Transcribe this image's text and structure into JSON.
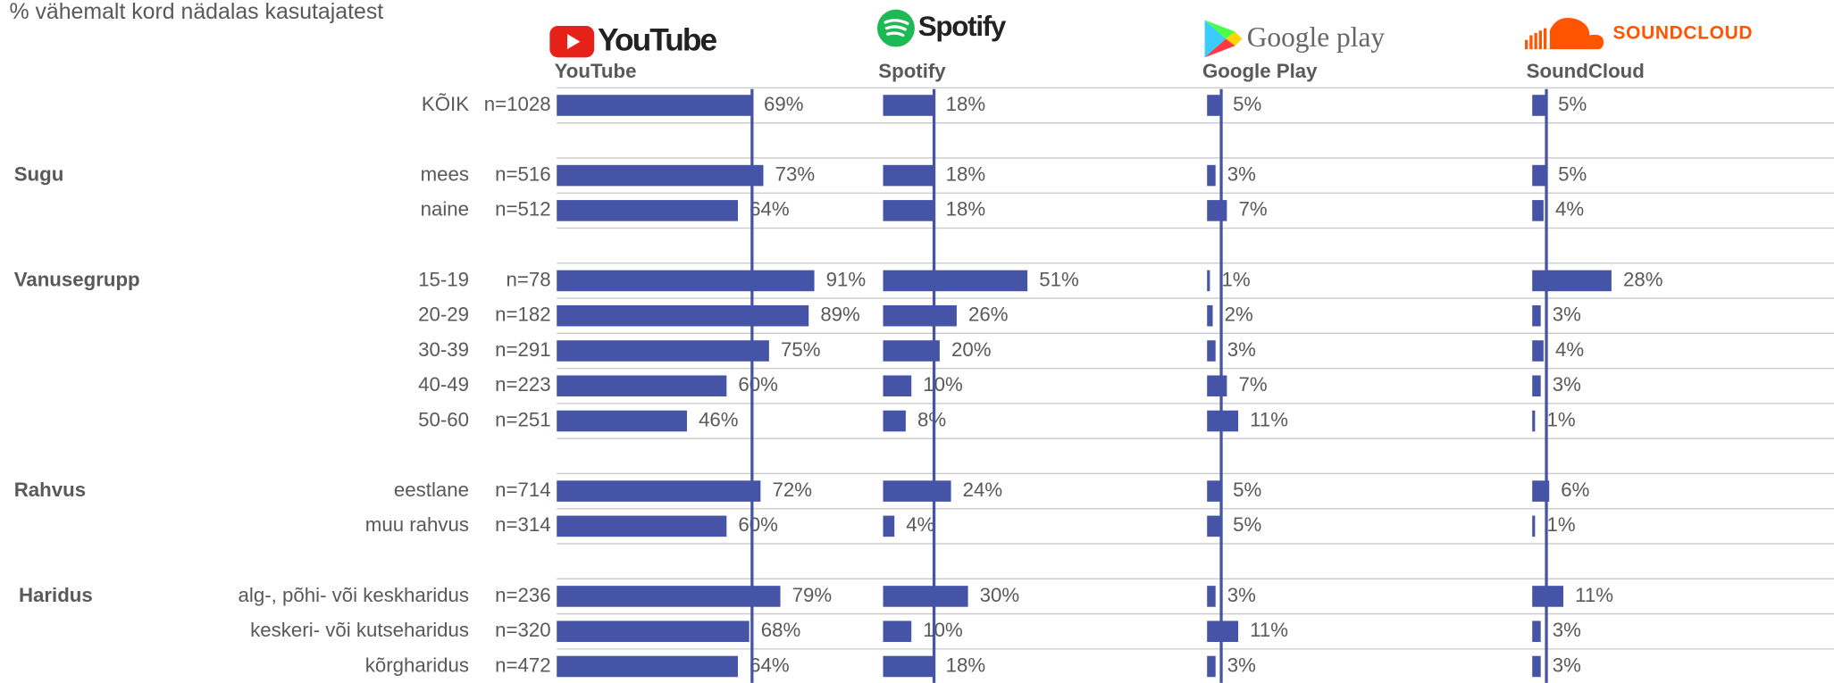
{
  "chart_data": {
    "type": "bar",
    "title": "% vähemalt kord nädalas kasutajatest",
    "group_labels": [
      null,
      "Sugu",
      null,
      "Vanusegrupp",
      null,
      null,
      null,
      null,
      "Rahvus",
      null,
      "Haridus",
      null,
      null
    ],
    "categories": [
      "KÕIK",
      "mees",
      "naine",
      "15-19",
      "20-29",
      "30-39",
      "40-49",
      "50-60",
      "eestlane",
      "muu rahvus",
      "alg-, põhi- või keskharidus",
      "keskeri- või kutseharidus",
      "kõrgharidus"
    ],
    "n_labels": [
      "n=1028",
      "n=516",
      "n=512",
      "n=78",
      "n=182",
      "n=291",
      "n=223",
      "n=251",
      "n=714",
      "n=314",
      "n=236",
      "n=320",
      "n=472"
    ],
    "xlim": [
      0,
      100
    ],
    "series": [
      {
        "name": "YouTube",
        "logo": "YouTube",
        "color": "#4654a7",
        "values": [
          69,
          73,
          64,
          91,
          89,
          75,
          60,
          46,
          72,
          60,
          79,
          68,
          64
        ],
        "value_labels": [
          "69%",
          "73%",
          "64%",
          "91%",
          "89%",
          "75%",
          "60%",
          "46%",
          "72%",
          "60%",
          "79%",
          "68%",
          "64%"
        ]
      },
      {
        "name": "Spotify",
        "logo": "Spotify",
        "color": "#4654a7",
        "values": [
          18,
          18,
          18,
          51,
          26,
          20,
          10,
          8,
          24,
          4,
          30,
          10,
          18
        ],
        "value_labels": [
          "18%",
          "18%",
          "18%",
          "51%",
          "26%",
          "20%",
          "10%",
          "8%",
          "24%",
          "4%",
          "30%",
          "10%",
          "18%"
        ]
      },
      {
        "name": "Google Play",
        "logo": "Google play",
        "color": "#4654a7",
        "values": [
          5,
          3,
          7,
          1,
          2,
          3,
          7,
          11,
          5,
          5,
          3,
          11,
          3
        ],
        "value_labels": [
          "5%",
          "3%",
          "7%",
          "1%",
          "2%",
          "3%",
          "7%",
          "11%",
          "5%",
          "5%",
          "3%",
          "11%",
          "3%"
        ]
      },
      {
        "name": "SoundCloud",
        "logo": "SOUNDCLOUD",
        "color": "#4654a7",
        "values": [
          5,
          5,
          4,
          28,
          3,
          4,
          3,
          1,
          6,
          1,
          11,
          3,
          3
        ],
        "value_labels": [
          "5%",
          "5%",
          "4%",
          "28%",
          "3%",
          "4%",
          "3%",
          "1%",
          "6%",
          "1%",
          "11%",
          "3%",
          "3%"
        ]
      }
    ]
  }
}
